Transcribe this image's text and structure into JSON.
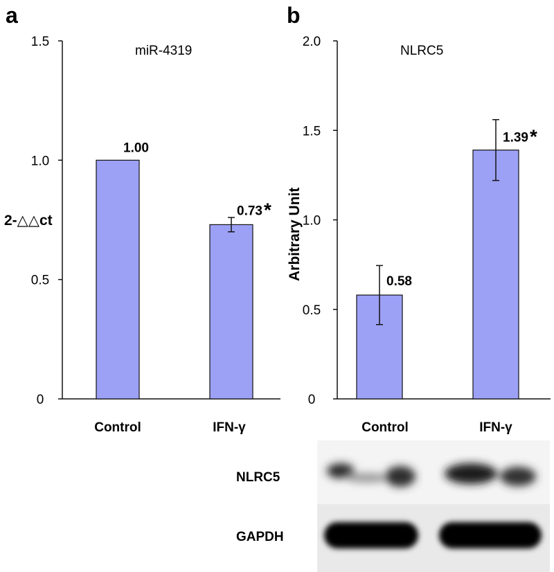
{
  "chart_data": [
    {
      "panel": "a",
      "type": "bar",
      "title": "miR-4319",
      "ylabel": "2-△△ct",
      "ylim": [
        0,
        1.5
      ],
      "yticks": [
        {
          "value": 0,
          "label": "0"
        },
        {
          "value": 0.5,
          "label": "0.5"
        },
        {
          "value": 1.0,
          "label": "1.0"
        },
        {
          "value": 1.5,
          "label": "1.5"
        }
      ],
      "categories": [
        "Control",
        "IFN-γ"
      ],
      "values": [
        1.0,
        0.73
      ],
      "errors": [
        null,
        0.03
      ],
      "value_labels": [
        "1.00",
        "0.73"
      ],
      "significance": [
        "",
        "*"
      ],
      "bar_color": "#9da1f5",
      "grid": false
    },
    {
      "panel": "b",
      "type": "bar",
      "title": "NLRC5",
      "ylabel": "Arbitrary Unit",
      "ylim": [
        0,
        2.0
      ],
      "yticks": [
        {
          "value": 0,
          "label": "0"
        },
        {
          "value": 0.5,
          "label": "0.5"
        },
        {
          "value": 1.0,
          "label": "1.0"
        },
        {
          "value": 1.5,
          "label": "1.5"
        },
        {
          "value": 2.0,
          "label": "2.0"
        }
      ],
      "categories": [
        "Control",
        "IFN-γ"
      ],
      "values": [
        0.58,
        1.39
      ],
      "errors": [
        0.165,
        0.17
      ],
      "value_labels": [
        "0.58",
        "1.39"
      ],
      "significance": [
        "",
        "*"
      ],
      "bar_color": "#9da1f5",
      "grid": false
    }
  ],
  "blot": {
    "rows": [
      "NLRC5",
      "GAPDH"
    ]
  }
}
